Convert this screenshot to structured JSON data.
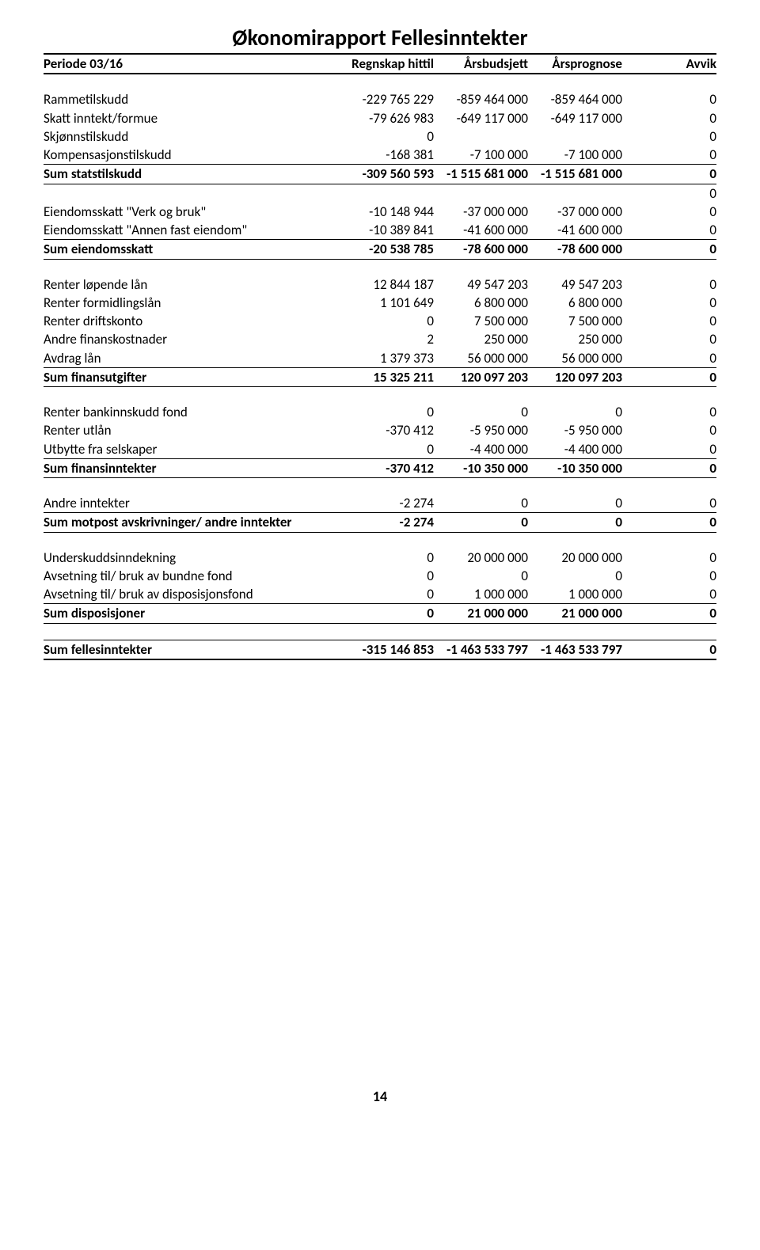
{
  "title": "Økonomirapport Fellesinntekter",
  "header": {
    "period": "Periode 03/16",
    "col1": "Regnskap hittil",
    "col2": "Årsbudsjett",
    "col3": "Årsprognose",
    "col4": "Avvik"
  },
  "sections": [
    {
      "rows": [
        {
          "label": "Rammetilskudd",
          "v": [
            "-229 765 229",
            "-859 464 000",
            "-859 464 000",
            "0"
          ]
        },
        {
          "label": "Skatt inntekt/formue",
          "v": [
            "-79 626 983",
            "-649 117 000",
            "-649 117 000",
            "0"
          ]
        },
        {
          "label": "Skjønnstilskudd",
          "v": [
            "0",
            "",
            "",
            "0"
          ]
        },
        {
          "label": "Kompensasjonstilskudd",
          "v": [
            "-168 381",
            "-7 100 000",
            "-7 100 000",
            "0"
          ]
        }
      ],
      "sum": {
        "label": "Sum statstilskudd",
        "v": [
          "-309 560 593",
          "-1 515 681 000",
          "-1 515 681 000",
          "0"
        ],
        "trailing": "0"
      }
    },
    {
      "rows": [
        {
          "label": "Eiendomsskatt \"Verk og bruk\"",
          "v": [
            "-10 148 944",
            "-37 000 000",
            "-37 000 000",
            "0"
          ]
        },
        {
          "label": "Eiendomsskatt \"Annen fast eiendom\"",
          "v": [
            "-10 389 841",
            "-41 600 000",
            "-41 600 000",
            "0"
          ]
        }
      ],
      "sum": {
        "label": "Sum eiendomsskatt",
        "v": [
          "-20 538 785",
          "-78 600 000",
          "-78 600 000",
          "0"
        ]
      }
    },
    {
      "rows": [
        {
          "label": "Renter løpende lån",
          "v": [
            "12 844 187",
            "49 547 203",
            "49 547 203",
            "0"
          ]
        },
        {
          "label": "Renter formidlingslån",
          "v": [
            "1 101 649",
            "6 800 000",
            "6 800 000",
            "0"
          ]
        },
        {
          "label": "Renter driftskonto",
          "v": [
            "0",
            "7 500 000",
            "7 500 000",
            "0"
          ]
        },
        {
          "label": "Andre finanskostnader",
          "v": [
            "2",
            "250 000",
            "250 000",
            "0"
          ]
        },
        {
          "label": "Avdrag lån",
          "v": [
            "1 379 373",
            "56 000 000",
            "56 000 000",
            "0"
          ]
        }
      ],
      "sum": {
        "label": "Sum finansutgifter",
        "v": [
          "15 325 211",
          "120 097 203",
          "120 097 203",
          "0"
        ]
      }
    },
    {
      "rows": [
        {
          "label": "Renter bankinnskudd fond",
          "v": [
            "0",
            "0",
            "0",
            "0"
          ]
        },
        {
          "label": "Renter utlån",
          "v": [
            "-370 412",
            "-5 950 000",
            "-5 950 000",
            "0"
          ]
        },
        {
          "label": "Utbytte fra selskaper",
          "v": [
            "0",
            "-4 400 000",
            "-4 400 000",
            "0"
          ]
        }
      ],
      "sum": {
        "label": "Sum finansinntekter",
        "v": [
          "-370 412",
          "-10 350 000",
          "-10 350 000",
          "0"
        ]
      }
    },
    {
      "rows": [
        {
          "label": "Andre inntekter",
          "v": [
            "-2 274",
            "0",
            "0",
            "0"
          ]
        }
      ],
      "sum": {
        "label": "Sum motpost avskrivninger/ andre inntekter",
        "v": [
          "-2 274",
          "0",
          "0",
          "0"
        ]
      }
    },
    {
      "rows": [
        {
          "label": "Underskuddsinndekning",
          "v": [
            "0",
            "20 000 000",
            "20 000 000",
            "0"
          ]
        },
        {
          "label": "Avsetning til/ bruk av bundne fond",
          "v": [
            "0",
            "0",
            "0",
            "0"
          ]
        },
        {
          "label": "Avsetning til/ bruk av disposisjonsfond",
          "v": [
            "0",
            "1 000 000",
            "1 000 000",
            "0"
          ]
        }
      ],
      "sum": {
        "label": "Sum disposisjoner",
        "v": [
          "0",
          "21 000 000",
          "21 000 000",
          "0"
        ]
      }
    }
  ],
  "grand": {
    "label": "Sum fellesinntekter",
    "v": [
      "-315 146 853",
      "-1 463 533 797",
      "-1 463 533 797",
      "0"
    ]
  },
  "page_number": "14"
}
